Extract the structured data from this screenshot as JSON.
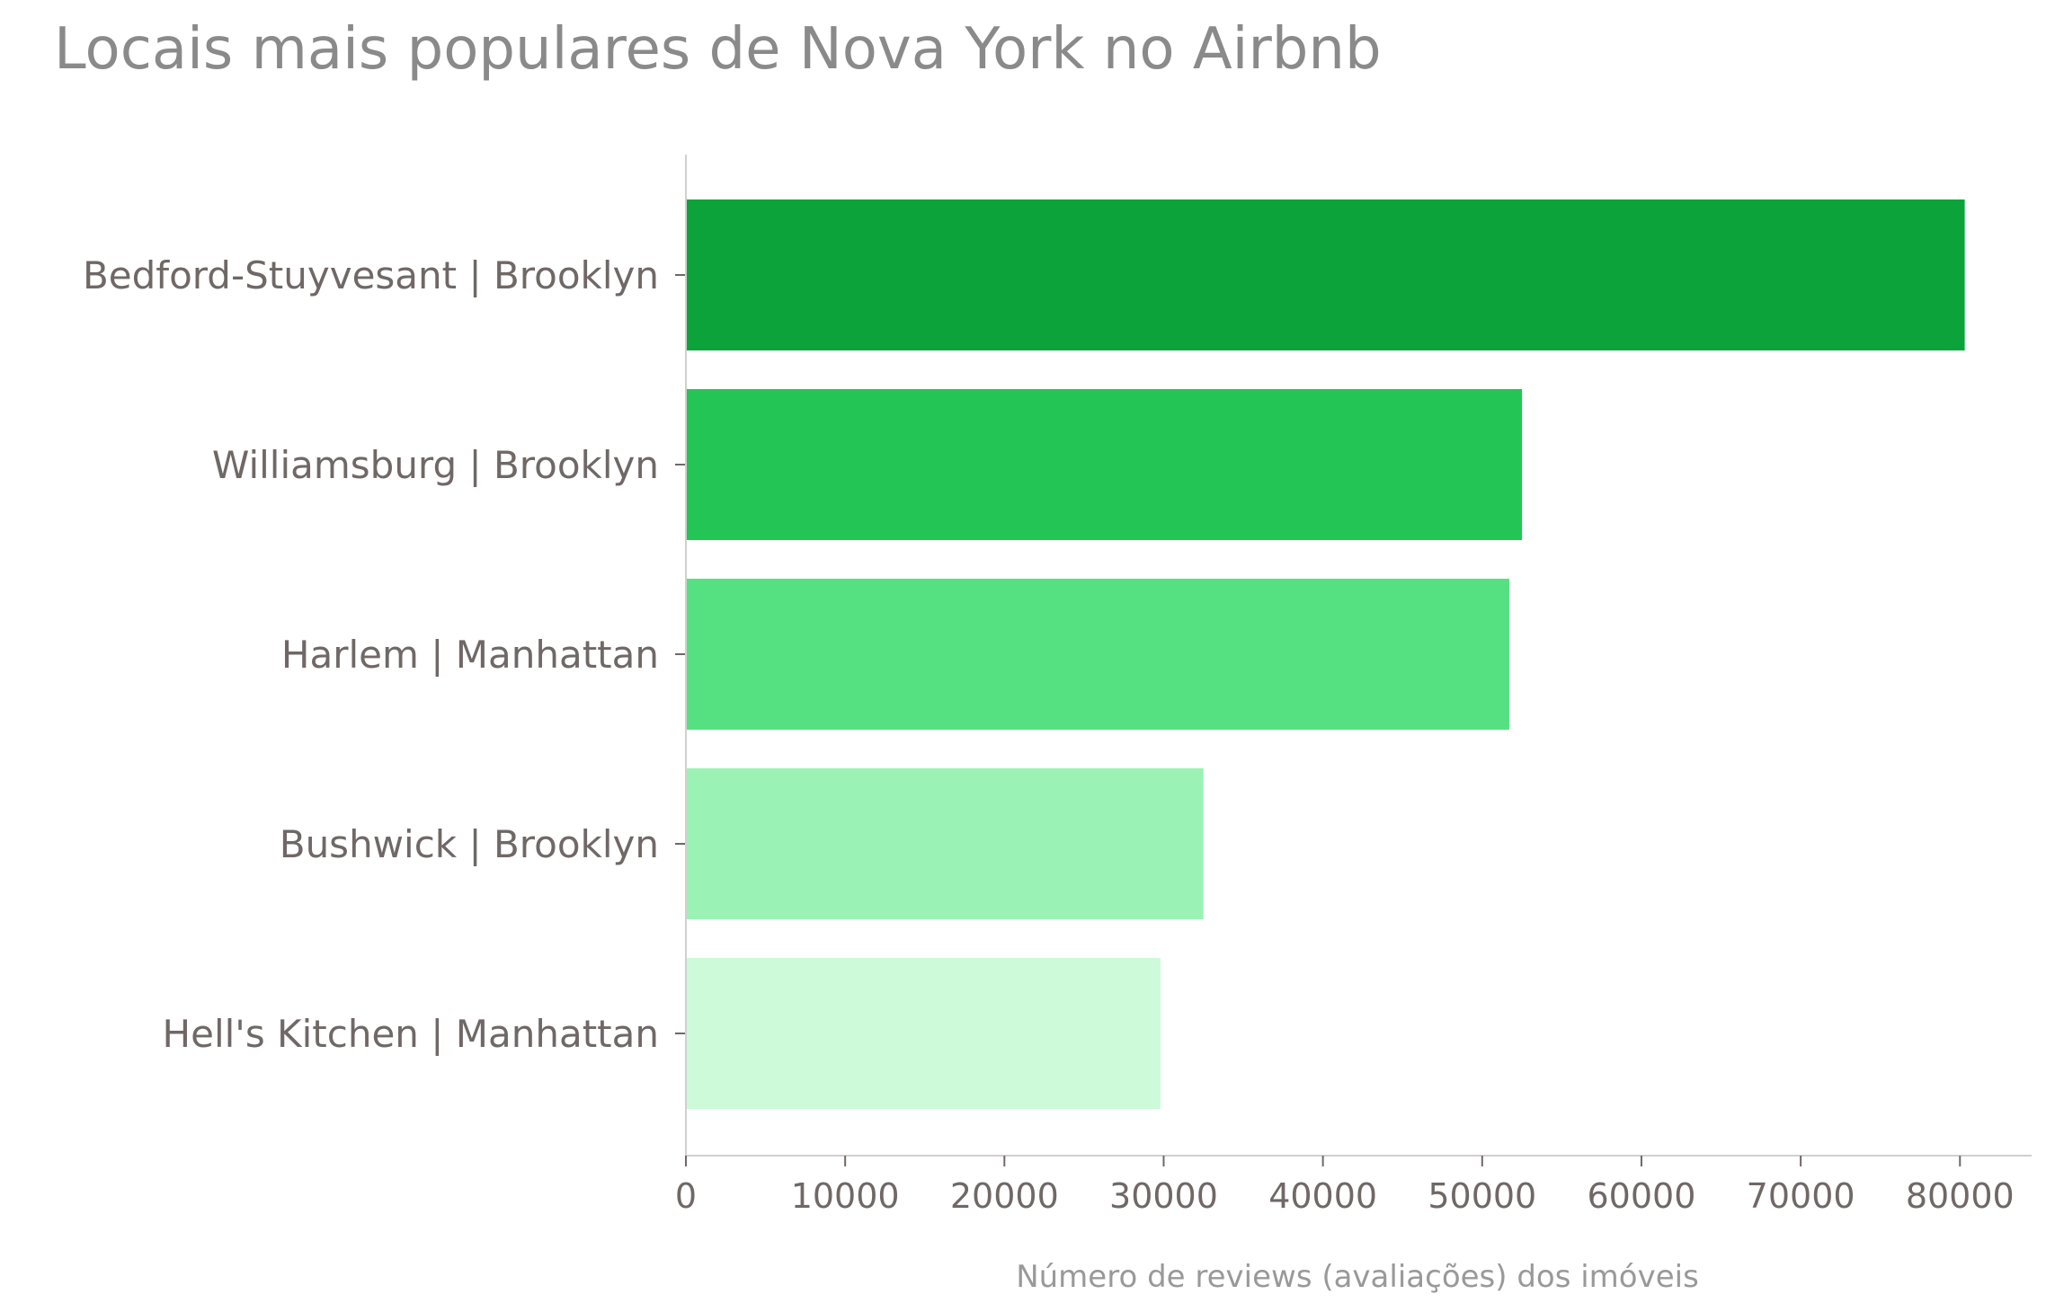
{
  "chart_data": {
    "type": "bar",
    "orientation": "horizontal",
    "title": "Locais mais populares de Nova York no Airbnb",
    "xlabel": "Número de reviews (avaliações) dos imóveis",
    "ylabel": "",
    "categories": [
      "Bedford-Stuyvesant | Brooklyn",
      "Williamsburg | Brooklyn",
      "Harlem | Manhattan",
      "Bushwick | Brooklyn",
      "Hell's Kitchen | Manhattan"
    ],
    "values": [
      80300,
      52500,
      51700,
      32500,
      29800
    ],
    "colors": [
      "#0ca43a",
      "#23c655",
      "#55e082",
      "#9af3b5",
      "#cdfad9"
    ],
    "xlim": [
      0,
      84500
    ],
    "xticks": [
      0,
      10000,
      20000,
      30000,
      40000,
      50000,
      60000,
      70000,
      80000
    ],
    "grid": false,
    "legend": "none"
  }
}
